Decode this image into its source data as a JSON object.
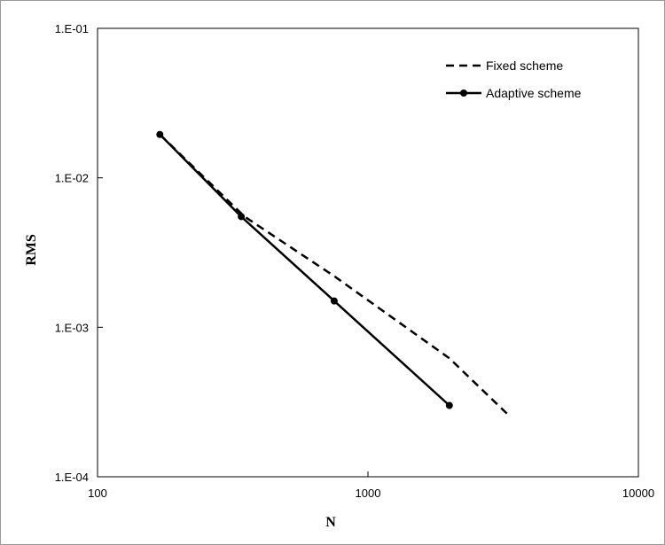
{
  "chart_data": {
    "type": "line",
    "xlabel": "N",
    "ylabel": "RMS",
    "xscale": "log",
    "yscale": "log",
    "xlim": [
      100,
      10000
    ],
    "ylim": [
      0.0001,
      0.1
    ],
    "x_ticks": [
      {
        "value": 100,
        "label": "100"
      },
      {
        "value": 1000,
        "label": "1000"
      },
      {
        "value": 10000,
        "label": "10000"
      }
    ],
    "y_ticks": [
      {
        "value": 0.1,
        "label": "1.E-01"
      },
      {
        "value": 0.01,
        "label": "1.E-02"
      },
      {
        "value": 0.001,
        "label": "1.E-03"
      },
      {
        "value": 0.0001,
        "label": "1.E-04"
      }
    ],
    "grid": false,
    "legend_position": "top-right",
    "series": [
      {
        "name": "Fixed scheme",
        "style": "dashed",
        "color": "#000000",
        "markers": false,
        "x": [
          170,
          350,
          750,
          2000,
          3300
        ],
        "y": [
          0.0195,
          0.0055,
          0.0022,
          0.00062,
          0.00026
        ]
      },
      {
        "name": "Adaptive scheme",
        "style": "solid",
        "color": "#000000",
        "markers": true,
        "x": [
          170,
          340,
          750,
          2000
        ],
        "y": [
          0.0195,
          0.0055,
          0.0015,
          0.0003
        ]
      }
    ]
  }
}
